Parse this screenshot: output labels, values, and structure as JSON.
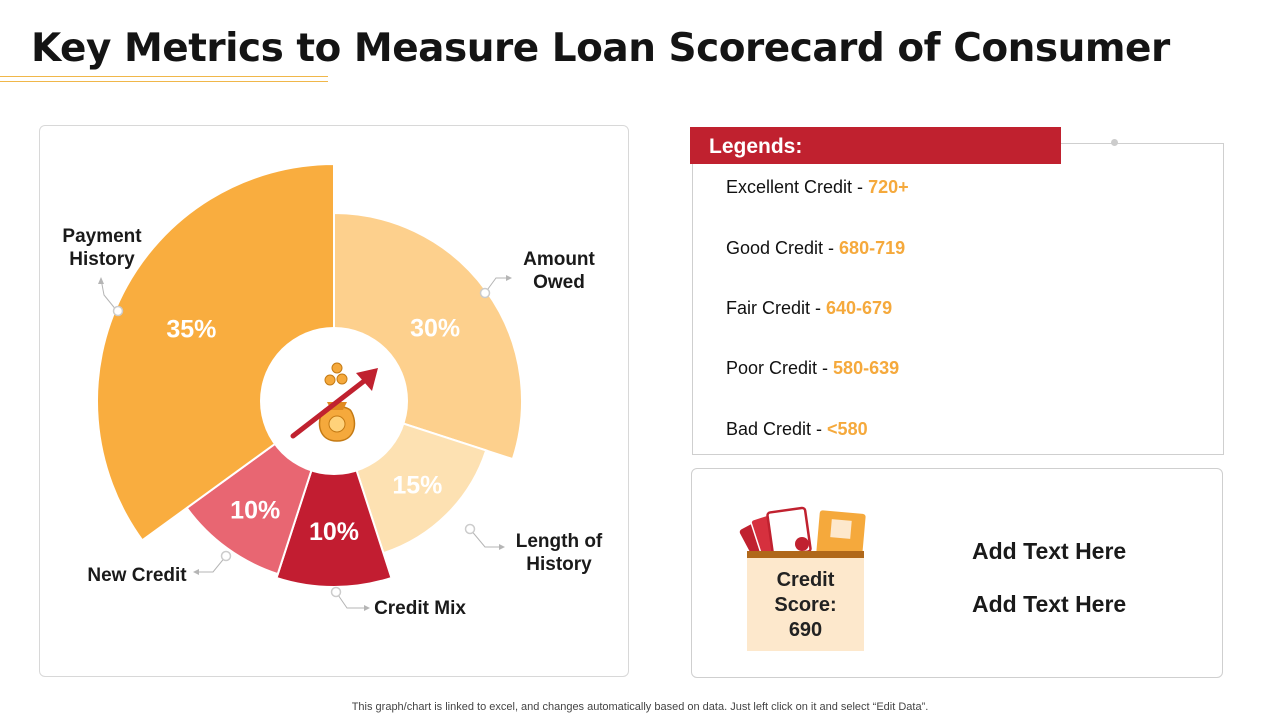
{
  "title": "Key Metrics to Measure Loan Scorecard of Consumer",
  "colors": {
    "accent_red": "#c0212f",
    "accent_orange": "#f5a93c",
    "payment_history": "#f9ad3f",
    "amount_owed": "#fdd08d",
    "length_of_history": "#fde1b2",
    "credit_mix": "#c21d31",
    "new_credit": "#e86672"
  },
  "chart_data": {
    "type": "pie",
    "variant": "variable-radius donut",
    "categories": [
      "Payment History",
      "Amount Owed",
      "Length of History",
      "Credit Mix",
      "New Credit"
    ],
    "values": [
      35,
      30,
      15,
      10,
      10
    ],
    "value_labels": [
      "35%",
      "30%",
      "15%",
      "10%",
      "10%"
    ],
    "center_icon": "money-bag-growth-arrow-icon"
  },
  "legend": {
    "header": "Legends:",
    "items": [
      {
        "label": "Excellent Credit - ",
        "range": "720+"
      },
      {
        "label": "Good Credit - ",
        "range": "680-719"
      },
      {
        "label": "Fair Credit - ",
        "range": "640-679"
      },
      {
        "label": "Poor Credit - ",
        "range": "580-639"
      },
      {
        "label": "Bad  Credit - ",
        "range": "<580"
      }
    ]
  },
  "score_card": {
    "icon": "wallet-cards-icon",
    "score_lines": [
      "Credit",
      "Score:",
      "690"
    ],
    "texts": [
      "Add Text Here",
      "Add Text Here"
    ]
  },
  "footnote": "This graph/chart is linked to excel,  and changes automatically based on data. Just left click on it and select “Edit Data”."
}
